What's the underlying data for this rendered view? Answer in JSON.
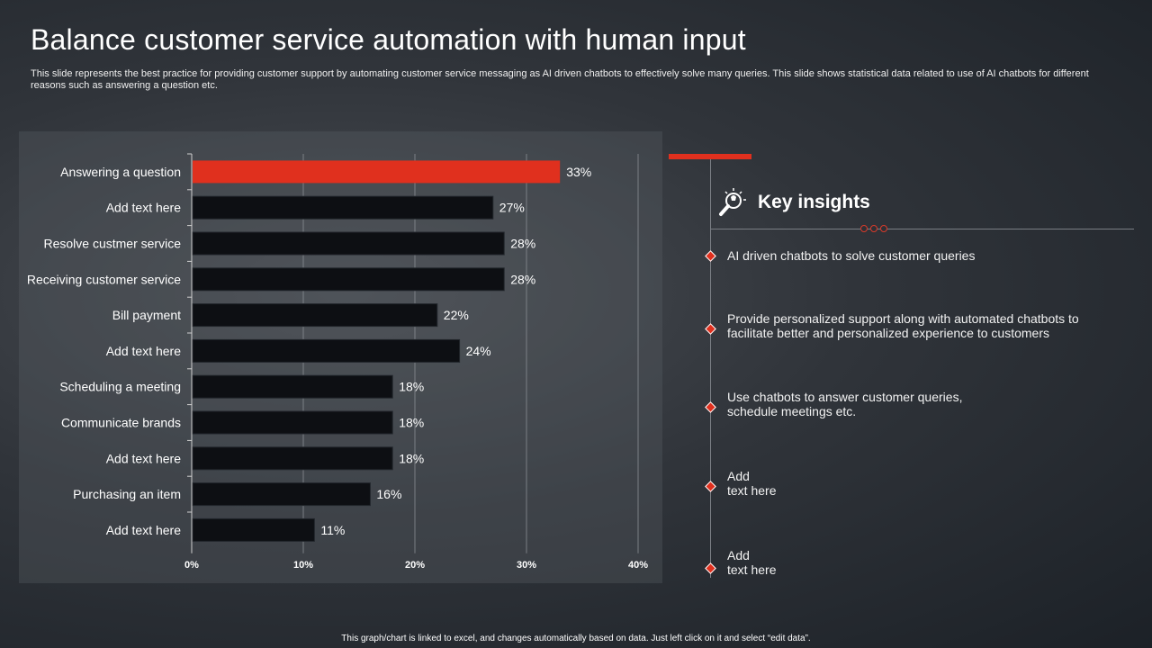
{
  "title": "Balance customer service automation with human input",
  "subtitle": "This slide represents the best practice for providing customer support by automating customer service messaging as AI driven chatbots to effectively  solve many queries. This slide shows statistical data related to use of AI chatbots for different reasons such as answering a question etc.",
  "chart_data": {
    "type": "bar",
    "orientation": "horizontal",
    "categories": [
      "Answering a question",
      "Add text here",
      "Resolve custmer service",
      "Receiving customer service",
      "Bill payment",
      "Add text here",
      "Scheduling a meeting",
      "Communicate brands",
      "Add text here",
      "Purchasing an item",
      "Add text here"
    ],
    "values": [
      33,
      27,
      28,
      28,
      22,
      24,
      18,
      18,
      18,
      16,
      11
    ],
    "data_labels": [
      "33%",
      "27%",
      "28%",
      "28%",
      "22%",
      "24%",
      "18%",
      "18%",
      "18%",
      "16%",
      "11%"
    ],
    "xlim": [
      0,
      40
    ],
    "x_ticks": [
      "0%",
      "10%",
      "20%",
      "30%",
      "40%"
    ],
    "grid": true,
    "highlight_color": "#e0301e",
    "bar_color": "#0d0f13"
  },
  "insights": {
    "title": "Key insights",
    "icon": "lightbulb-magnifier-icon",
    "items": [
      "AI driven chatbots to solve customer queries",
      "Provide personalized support along with automated chatbots to facilitate better and personalized experience to customers",
      "Use chatbots to answer customer queries, schedule meetings etc.",
      "Add\ntext here",
      "Add\ntext here"
    ]
  },
  "footer": "This graph/chart is linked to excel, and changes automatically based on data. Just left click on it and select “edit data”."
}
